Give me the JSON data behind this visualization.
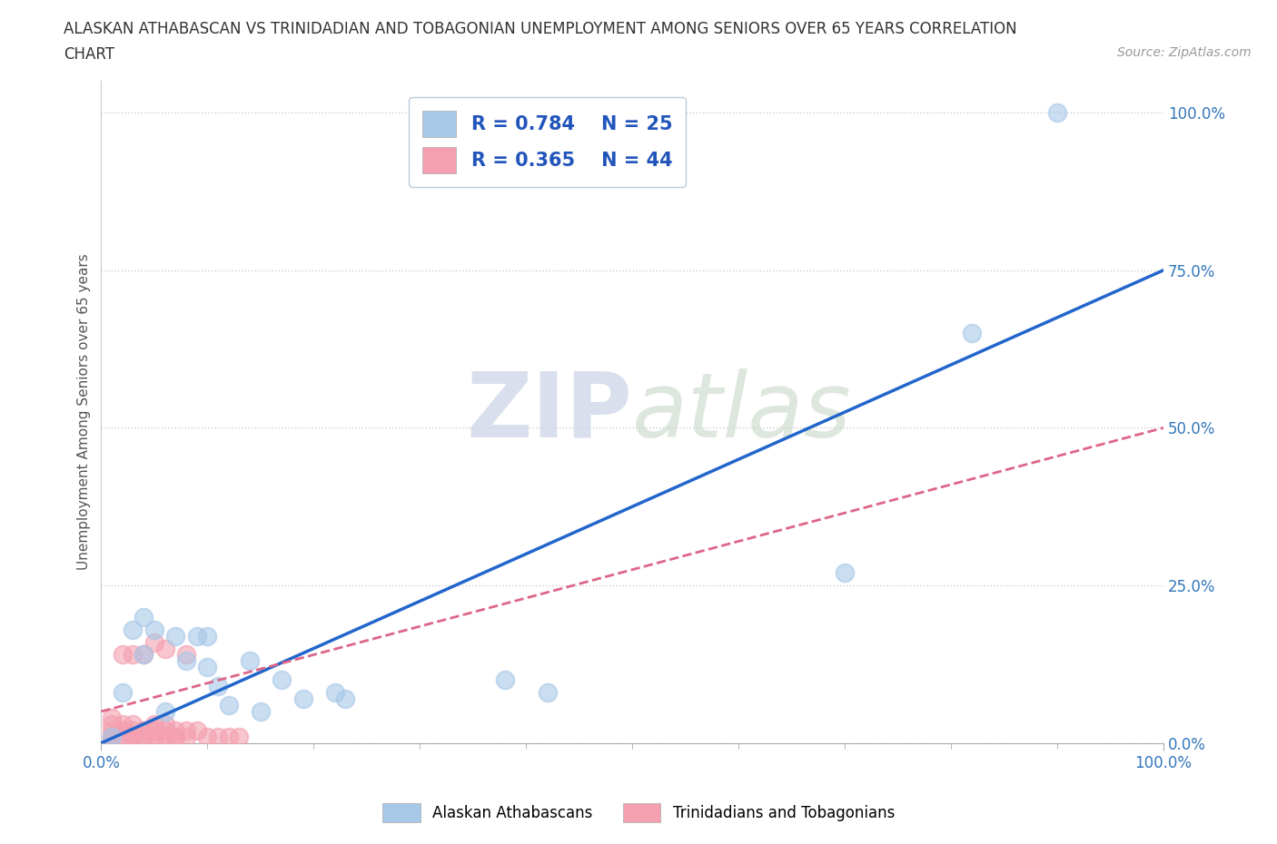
{
  "title_line1": "ALASKAN ATHABASCAN VS TRINIDADIAN AND TOBAGONIAN UNEMPLOYMENT AMONG SENIORS OVER 65 YEARS CORRELATION",
  "title_line2": "CHART",
  "source_text": "Source: ZipAtlas.com",
  "ylabel": "Unemployment Among Seniors over 65 years",
  "xmin": 0.0,
  "xmax": 1.0,
  "ymin": 0.0,
  "ymax": 1.05,
  "ytick_values": [
    0.0,
    0.25,
    0.5,
    0.75,
    1.0
  ],
  "ytick_labels": [
    "0.0%",
    "25.0%",
    "50.0%",
    "75.0%",
    "100.0%"
  ],
  "xtick_labels": [
    "0.0%",
    "100.0%"
  ],
  "blue_dot_color": "#a8c8e8",
  "pink_dot_color": "#f4a0b0",
  "blue_line_color": "#2266cc",
  "pink_line_color": "#dd6688",
  "R_blue": 0.784,
  "N_blue": 25,
  "R_pink": 0.365,
  "N_pink": 44,
  "legend_label_blue": "Alaskan Athabascans",
  "legend_label_pink": "Trinidadians and Tobagonians",
  "watermark_top": "ZIP",
  "watermark_bottom": "atlas",
  "blue_line_x0": 0.0,
  "blue_line_y0": 0.0,
  "blue_line_x1": 1.0,
  "blue_line_y1": 0.75,
  "pink_line_x0": 0.0,
  "pink_line_y0": 0.05,
  "pink_line_x1": 1.0,
  "pink_line_y1": 0.5,
  "blue_scatter_x": [
    0.01,
    0.02,
    0.03,
    0.04,
    0.04,
    0.05,
    0.06,
    0.07,
    0.08,
    0.09,
    0.1,
    0.1,
    0.11,
    0.12,
    0.14,
    0.15,
    0.17,
    0.19,
    0.22,
    0.23,
    0.38,
    0.42,
    0.7,
    0.82,
    0.9
  ],
  "blue_scatter_y": [
    0.01,
    0.08,
    0.18,
    0.14,
    0.2,
    0.18,
    0.05,
    0.17,
    0.13,
    0.17,
    0.12,
    0.17,
    0.09,
    0.06,
    0.13,
    0.05,
    0.1,
    0.07,
    0.08,
    0.07,
    0.1,
    0.08,
    0.27,
    0.65,
    1.0
  ],
  "pink_scatter_x": [
    0.01,
    0.01,
    0.01,
    0.01,
    0.01,
    0.02,
    0.02,
    0.02,
    0.02,
    0.02,
    0.02,
    0.03,
    0.03,
    0.03,
    0.03,
    0.03,
    0.03,
    0.04,
    0.04,
    0.04,
    0.04,
    0.04,
    0.05,
    0.05,
    0.05,
    0.05,
    0.05,
    0.05,
    0.06,
    0.06,
    0.06,
    0.06,
    0.06,
    0.07,
    0.07,
    0.07,
    0.08,
    0.08,
    0.08,
    0.09,
    0.1,
    0.11,
    0.12,
    0.13
  ],
  "pink_scatter_y": [
    0.01,
    0.01,
    0.02,
    0.03,
    0.04,
    0.01,
    0.01,
    0.02,
    0.02,
    0.03,
    0.14,
    0.01,
    0.01,
    0.01,
    0.02,
    0.03,
    0.14,
    0.01,
    0.01,
    0.02,
    0.02,
    0.14,
    0.01,
    0.01,
    0.02,
    0.02,
    0.03,
    0.16,
    0.01,
    0.01,
    0.02,
    0.03,
    0.15,
    0.01,
    0.01,
    0.02,
    0.01,
    0.02,
    0.14,
    0.02,
    0.01,
    0.01,
    0.01,
    0.01
  ]
}
